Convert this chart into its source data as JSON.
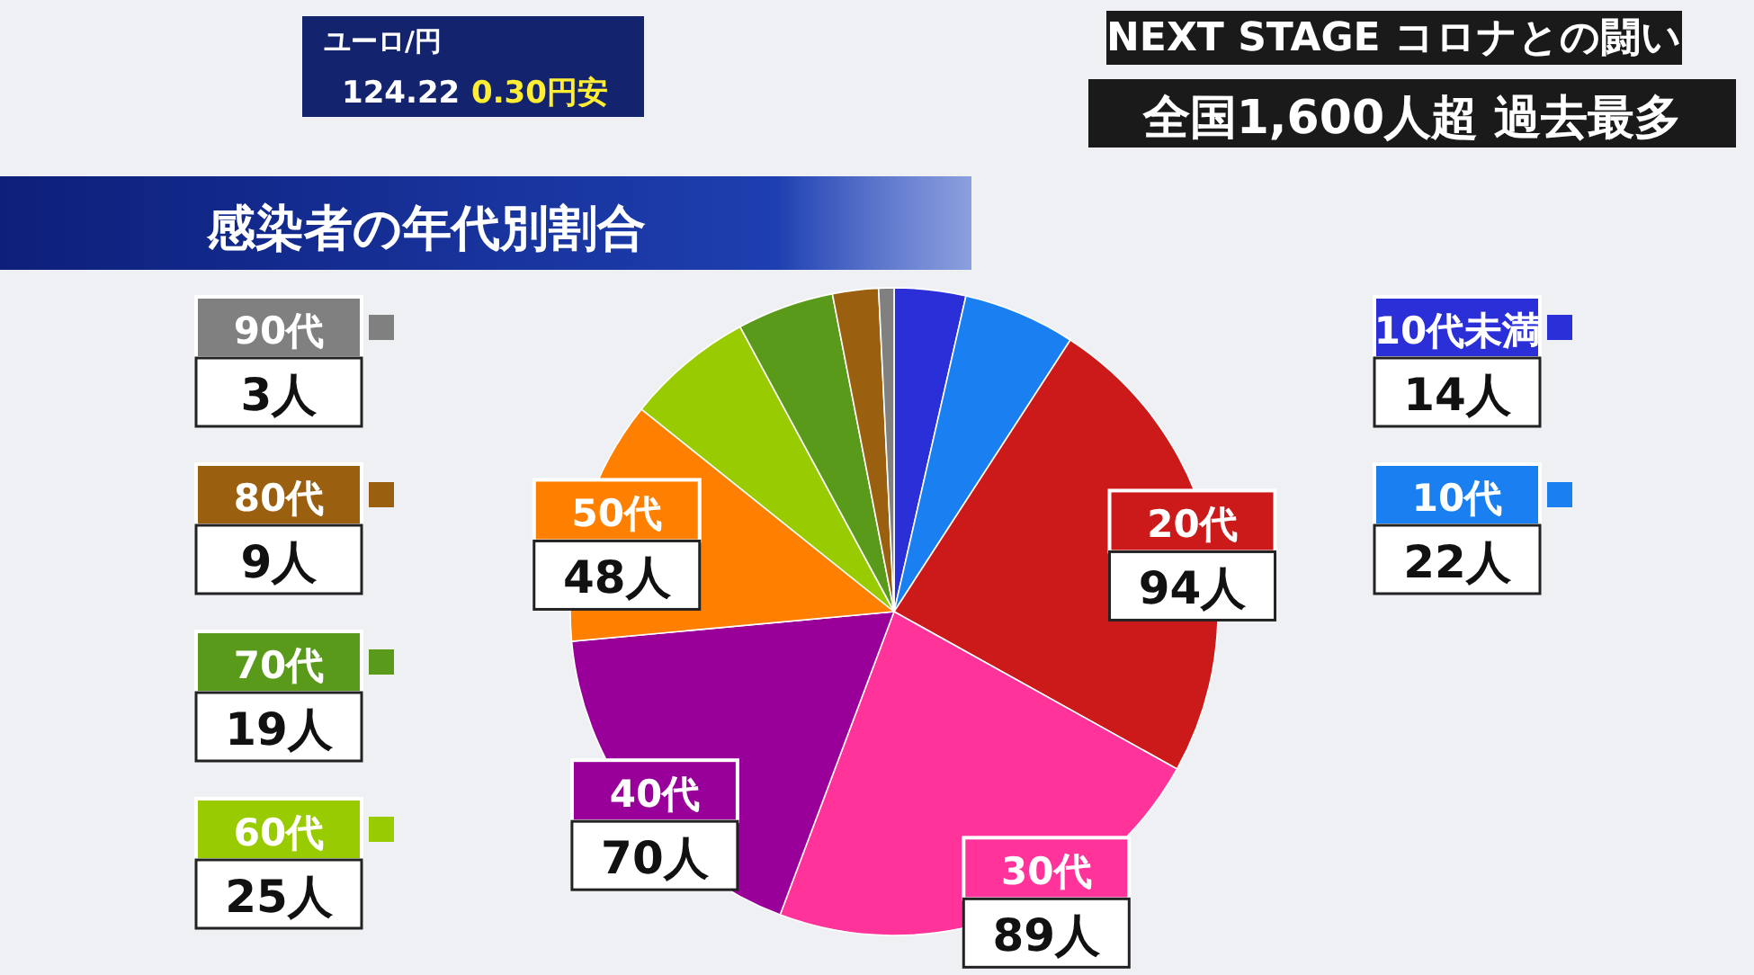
{
  "chart_data": {
    "type": "pie",
    "title": "感染者の年代別割合",
    "subtitle": "全国1,600人超 過去最多",
    "annotations": [
      "NEXT STAGE コロナとの闘い",
      "ユーロ/円",
      "124.22",
      "0.30円安"
    ],
    "categories": [
      "10代未満",
      "10代",
      "20代",
      "30代",
      "40代",
      "50代",
      "60代",
      "70代",
      "80代",
      "90代"
    ],
    "values": [
      14,
      22,
      94,
      89,
      70,
      48,
      25,
      19,
      9,
      3
    ],
    "value_labels": [
      "14人",
      "22人",
      "94人",
      "89人",
      "70人",
      "48人",
      "25人",
      "19人",
      "9人",
      "3人"
    ],
    "colors": [
      "#2a2fd8",
      "#1a80f2",
      "#cc1a1a",
      "#ff3399",
      "#990099",
      "#ff8000",
      "#99cc00",
      "#5a9a1a",
      "#9a6010",
      "#808080"
    ],
    "legend": "left"
  }
}
